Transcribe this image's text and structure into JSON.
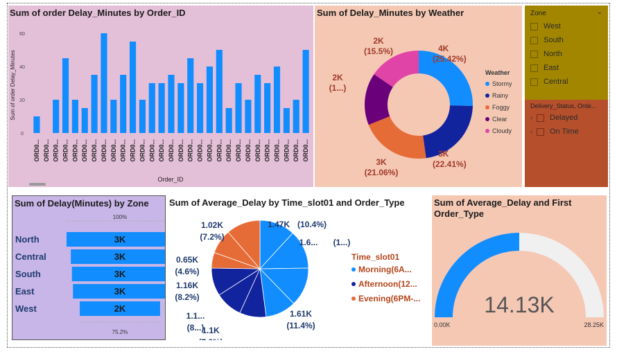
{
  "bar_chart": {
    "title": "Sum of order Delay_Minutes by Order_ID",
    "xlabel": "Order_ID",
    "ylabel": "Sum of order Delay_Minutes",
    "tick_labels": [
      "60",
      "40",
      "20",
      "0"
    ],
    "category_label": "ORD0...",
    "color": "#118dff"
  },
  "donut_chart": {
    "title": "Sum of Delay_Minutes by Weather",
    "legend_title": "Weather",
    "legend": [
      {
        "name": "Stormy",
        "color": "#118dff"
      },
      {
        "name": "Rainy",
        "color": "#12239e"
      },
      {
        "name": "Foggy",
        "color": "#e66c37"
      },
      {
        "name": "Clear",
        "color": "#6b007b"
      },
      {
        "name": "Cloudy",
        "color": "#e044a7"
      }
    ],
    "labels": [
      {
        "value": "4K",
        "pct": "(25.42%)"
      },
      {
        "value": "3K",
        "pct": "(22.41%)"
      },
      {
        "value": "3K",
        "pct": "(21.06%)"
      },
      {
        "value": "2K",
        "pct": "(1...)"
      },
      {
        "value": "2K",
        "pct": "(15.5%)"
      }
    ]
  },
  "zone_slicer": {
    "title": "Zone",
    "items": [
      "West",
      "South",
      "North",
      "East",
      "Central"
    ]
  },
  "status_slicer": {
    "title": "Delivery_Status, Orde...",
    "items": [
      "Delayed",
      "On Time"
    ]
  },
  "funnel": {
    "title": "Sum of Delay(Minutes) by Zone",
    "top_label": "100%",
    "bottom_label": "75.2%",
    "rows": [
      {
        "zone": "North",
        "value": "3K"
      },
      {
        "zone": "Central",
        "value": "3K"
      },
      {
        "zone": "South",
        "value": "3K"
      },
      {
        "zone": "East",
        "value": "3K"
      },
      {
        "zone": "West",
        "value": "2K"
      }
    ]
  },
  "pie_chart": {
    "title": "Sum of Average_Delay by Time_slot01 and Order_Type",
    "legend_title": "Time_slot01",
    "legend": [
      {
        "name": "Morning(6A...",
        "color": "#118dff"
      },
      {
        "name": "Afternoon(12...",
        "color": "#12239e"
      },
      {
        "name": "Evening(6PM-...",
        "color": "#e66c37"
      }
    ],
    "labels": [
      {
        "value": "1.47K",
        "pct": "(10.4%)"
      },
      {
        "value": "1.6...",
        "pct": "(1...)"
      },
      {
        "value": "1.61K",
        "pct": "(11.4%)"
      },
      {
        "value": "1.1K",
        "pct": "(7.8%)"
      },
      {
        "value": "1.1...",
        "pct": "(8...)"
      },
      {
        "value": "1.16K",
        "pct": "(8.2%)"
      },
      {
        "value": "0.65K",
        "pct": "(4.6%)"
      },
      {
        "value": "1.02K",
        "pct": "(7.2%)"
      }
    ]
  },
  "gauge": {
    "title_line1": "Sum of Average_Delay and First",
    "title_line2": "Order_Type",
    "value_label": "14.13K",
    "min_label": "0.00K",
    "max_label": "28.25K",
    "fill_fraction": 0.5
  },
  "chart_data": [
    {
      "type": "bar",
      "title": "Sum of order Delay_Minutes by Order_ID",
      "xlabel": "Order_ID",
      "ylabel": "Sum of order Delay_Minutes",
      "ylim": [
        0,
        65
      ],
      "values": [
        10,
        0,
        20,
        45,
        20,
        15,
        35,
        60,
        20,
        35,
        55,
        20,
        30,
        30,
        35,
        30,
        45,
        30,
        40,
        50,
        15,
        30,
        20,
        35,
        30,
        40,
        15,
        20,
        50
      ]
    },
    {
      "type": "pie",
      "title": "Sum of Delay_Minutes by Weather",
      "categories": [
        "Stormy",
        "Rainy",
        "Foggy",
        "Clear",
        "Cloudy"
      ],
      "values": [
        25.42,
        22.41,
        21.06,
        15.61,
        15.5
      ]
    },
    {
      "type": "bar",
      "title": "Sum of Delay(Minutes) by Zone",
      "categories": [
        "North",
        "Central",
        "South",
        "East",
        "West"
      ],
      "values": [
        100,
        92,
        90,
        88,
        75.2
      ]
    },
    {
      "type": "pie",
      "title": "Sum of Average_Delay by Time_slot01 and Order_Type",
      "values": [
        10.4,
        11.4,
        11.4,
        7.8,
        8.0,
        8.2,
        4.6,
        7.2,
        31.0
      ]
    }
  ]
}
